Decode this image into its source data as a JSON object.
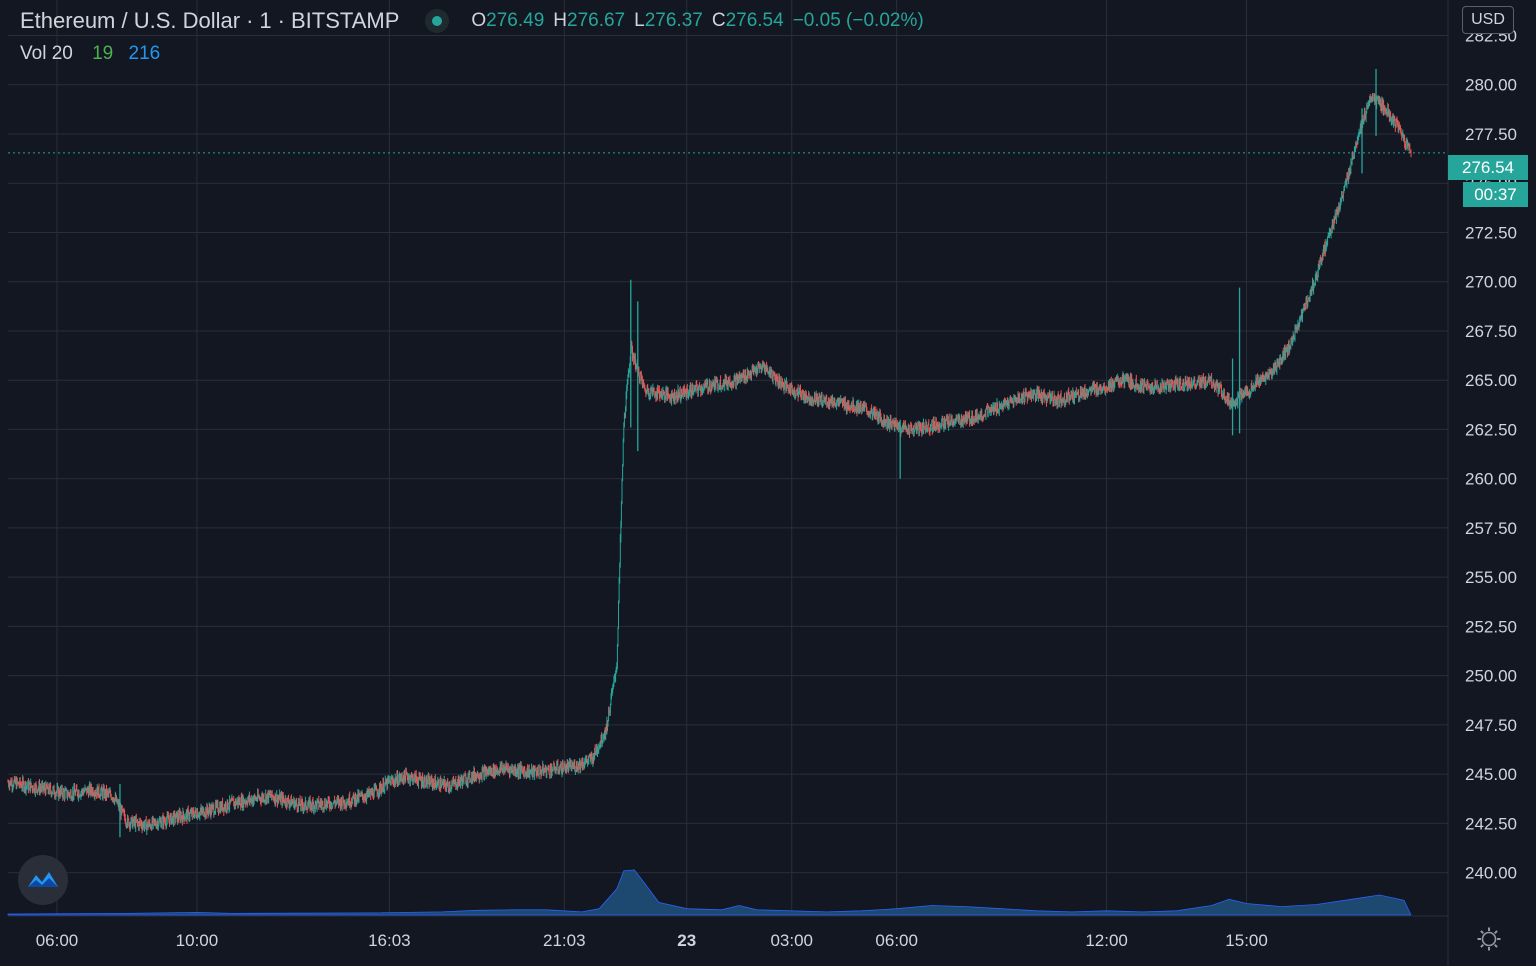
{
  "header": {
    "symbol": "Ethereum / U.S. Dollar",
    "interval": "1",
    "exchange": "BITSTAMP",
    "status_icon": "live-dot-icon",
    "ohlc": {
      "o_label": "O",
      "o_value": "276.49",
      "h_label": "H",
      "h_value": "276.67",
      "l_label": "L",
      "l_value": "276.37",
      "c_label": "C",
      "c_value": "276.54",
      "change": "−0.05 (−0.02%)"
    }
  },
  "volume_legend": {
    "label": "Vol 20",
    "value_green": "19",
    "value_blue": "216"
  },
  "currency_button": "USD",
  "last_price_tag": "276.54",
  "countdown_tag": "00:37",
  "icons": {
    "logo": "tradingview-logo-icon",
    "settings": "settings-gear-icon"
  },
  "colors": {
    "background": "#131722",
    "up": "#26a69a",
    "down": "#ef5350",
    "volume": "#1f4e79",
    "grid": "#2a2e39"
  },
  "chart_data": {
    "type": "candlestick",
    "title": "Ethereum / U.S. Dollar · 1 · BITSTAMP",
    "y_axis": {
      "ticks": [
        240.0,
        242.5,
        245.0,
        247.5,
        250.0,
        252.5,
        255.0,
        257.5,
        260.0,
        262.5,
        265.0,
        267.5,
        270.0,
        272.5,
        275.0,
        277.5,
        280.0,
        282.5
      ],
      "tick_labels": [
        "240.00",
        "242.50",
        "245.00",
        "247.50",
        "250.00",
        "252.50",
        "255.00",
        "257.50",
        "260.00",
        "262.50",
        "265.00",
        "267.50",
        "270.00",
        "272.50",
        "275.00",
        "277.50",
        "280.00",
        "282.50"
      ],
      "range": [
        237.8,
        284.3
      ]
    },
    "x_axis": {
      "tick_labels": [
        "06:00",
        "10:00",
        "16:03",
        "21:03",
        "23",
        "03:00",
        "06:00",
        "12:00",
        "15:00"
      ],
      "tick_times": [
        6,
        10,
        15.5,
        20.5,
        24,
        27,
        30,
        36,
        40
      ],
      "range": [
        4.6,
        44.9
      ],
      "unit": "hours"
    },
    "price_path": [
      [
        4.6,
        244.6
      ],
      [
        5.5,
        244.3
      ],
      [
        6.3,
        244.0
      ],
      [
        7.0,
        244.2
      ],
      [
        7.6,
        243.9
      ],
      [
        8.0,
        242.6
      ],
      [
        8.6,
        242.4
      ],
      [
        9.4,
        242.8
      ],
      [
        10.2,
        243.1
      ],
      [
        11.2,
        243.6
      ],
      [
        12.1,
        243.9
      ],
      [
        13.0,
        243.4
      ],
      [
        14.2,
        243.6
      ],
      [
        15.0,
        244.0
      ],
      [
        15.5,
        244.6
      ],
      [
        16.0,
        244.9
      ],
      [
        16.6,
        244.6
      ],
      [
        17.2,
        244.4
      ],
      [
        18.0,
        245.0
      ],
      [
        18.8,
        245.3
      ],
      [
        19.6,
        245.1
      ],
      [
        20.3,
        245.3
      ],
      [
        20.8,
        245.4
      ],
      [
        21.3,
        245.8
      ],
      [
        21.7,
        247.3
      ],
      [
        22.0,
        250.6
      ],
      [
        22.2,
        262.8
      ],
      [
        22.4,
        266.6
      ],
      [
        22.8,
        264.5
      ],
      [
        23.6,
        264.2
      ],
      [
        24.6,
        264.7
      ],
      [
        25.4,
        265.0
      ],
      [
        26.2,
        265.7
      ],
      [
        26.8,
        264.7
      ],
      [
        27.5,
        264.1
      ],
      [
        28.2,
        263.9
      ],
      [
        29.0,
        263.6
      ],
      [
        29.7,
        262.9
      ],
      [
        30.1,
        262.6
      ],
      [
        30.5,
        262.5
      ],
      [
        31.3,
        262.8
      ],
      [
        32.2,
        263.1
      ],
      [
        33.0,
        263.7
      ],
      [
        33.8,
        264.3
      ],
      [
        34.6,
        264.0
      ],
      [
        35.4,
        264.4
      ],
      [
        36.0,
        264.7
      ],
      [
        36.5,
        265.0
      ],
      [
        37.2,
        264.6
      ],
      [
        38.0,
        264.8
      ],
      [
        39.0,
        264.9
      ],
      [
        39.6,
        263.8
      ],
      [
        40.2,
        264.7
      ],
      [
        40.8,
        265.5
      ],
      [
        41.3,
        267.0
      ],
      [
        41.9,
        269.8
      ],
      [
        42.4,
        272.6
      ],
      [
        42.8,
        274.6
      ],
      [
        43.2,
        277.6
      ],
      [
        43.6,
        279.4
      ],
      [
        44.0,
        278.7
      ],
      [
        44.4,
        277.6
      ],
      [
        44.7,
        276.5
      ]
    ],
    "spikes": [
      {
        "t": 22.4,
        "high": 270.1,
        "low": 262.6
      },
      {
        "t": 22.6,
        "high": 269.0,
        "low": 261.4
      },
      {
        "t": 30.1,
        "high": 263.0,
        "low": 260.0
      },
      {
        "t": 39.8,
        "high": 269.7,
        "low": 262.3
      },
      {
        "t": 39.6,
        "high": 266.1,
        "low": 262.2
      },
      {
        "t": 43.7,
        "high": 280.8,
        "low": 277.4
      },
      {
        "t": 43.3,
        "high": 278.8,
        "low": 275.5
      },
      {
        "t": 7.8,
        "high": 244.5,
        "low": 241.8
      }
    ],
    "volume_hump": [
      [
        4.6,
        1
      ],
      [
        8,
        1.5
      ],
      [
        10,
        2.5
      ],
      [
        11,
        1.5
      ],
      [
        15,
        2
      ],
      [
        17,
        3
      ],
      [
        18,
        4.5
      ],
      [
        19,
        5
      ],
      [
        20,
        5
      ],
      [
        21,
        3
      ],
      [
        21.5,
        6
      ],
      [
        22.0,
        25
      ],
      [
        22.2,
        42
      ],
      [
        22.5,
        43
      ],
      [
        22.8,
        30
      ],
      [
        23.2,
        12
      ],
      [
        24,
        6
      ],
      [
        25,
        5
      ],
      [
        25.5,
        9
      ],
      [
        26,
        5
      ],
      [
        28,
        3
      ],
      [
        29,
        4
      ],
      [
        30,
        6
      ],
      [
        31,
        9
      ],
      [
        32,
        8
      ],
      [
        33,
        6
      ],
      [
        34,
        4
      ],
      [
        35,
        3
      ],
      [
        36,
        4
      ],
      [
        37,
        3
      ],
      [
        38,
        4
      ],
      [
        39,
        9
      ],
      [
        39.5,
        15
      ],
      [
        40,
        11
      ],
      [
        41,
        8
      ],
      [
        42,
        10
      ],
      [
        43,
        15
      ],
      [
        43.8,
        19
      ],
      [
        44.5,
        14
      ],
      [
        44.7,
        0
      ]
    ],
    "last_price": 276.54,
    "series": [
      {
        "name": "Vol 20",
        "type": "volume"
      }
    ]
  }
}
